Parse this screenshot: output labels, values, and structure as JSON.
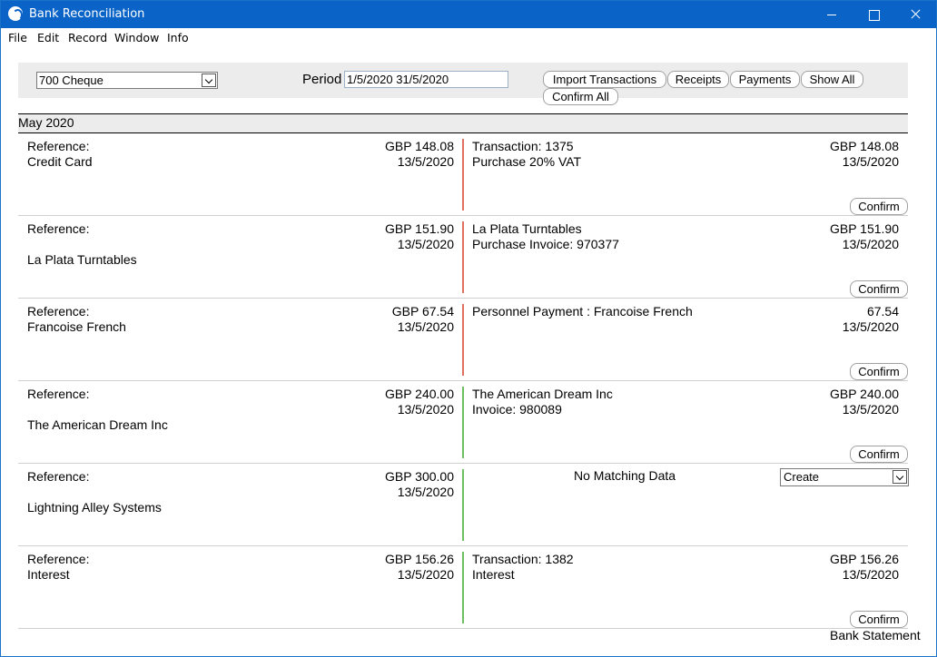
{
  "window": {
    "title": "Bank Reconciliation",
    "controls": {
      "minimize": "minimize",
      "maximize": "maximize",
      "close": "close"
    }
  },
  "menu": [
    "File",
    "Edit",
    "Record",
    "Window",
    "Info"
  ],
  "toolbar": {
    "account": "700 Cheque",
    "period_label": "Period",
    "period_value": "1/5/2020 31/5/2020",
    "buttons": {
      "import": "Import Transactions",
      "receipts": "Receipts",
      "payments": "Payments",
      "show_all": "Show All",
      "confirm_all": "Confirm All"
    }
  },
  "month": "May 2020",
  "rows": [
    {
      "left": {
        "line1": "Reference:",
        "line2": "Credit Card",
        "line3": "",
        "amount": "GBP 148.08",
        "date": "13/5/2020"
      },
      "status": "red",
      "right": {
        "line1": "Transaction: 1375",
        "line2": "Purchase 20% VAT",
        "amount": "GBP 148.08",
        "date": "13/5/2020"
      },
      "action": "Confirm"
    },
    {
      "left": {
        "line1": "Reference:",
        "line2": "",
        "line3": "La Plata Turntables",
        "amount": "GBP 151.90",
        "date": "13/5/2020"
      },
      "status": "red",
      "right": {
        "line1": "La Plata Turntables",
        "line2": "Purchase Invoice: 970377",
        "amount": "GBP 151.90",
        "date": "13/5/2020"
      },
      "action": "Confirm"
    },
    {
      "left": {
        "line1": "Reference:",
        "line2": "Francoise French",
        "line3": "",
        "amount": "GBP 67.54",
        "date": "13/5/2020"
      },
      "status": "red",
      "right": {
        "line1": "Personnel Payment : Francoise French",
        "line2": "",
        "amount": "67.54",
        "date": "13/5/2020"
      },
      "action": "Confirm"
    },
    {
      "left": {
        "line1": "Reference:",
        "line2": "",
        "line3": "The American Dream Inc",
        "amount": "GBP 240.00",
        "date": "13/5/2020"
      },
      "status": "green",
      "right": {
        "line1": "The American Dream Inc",
        "line2": "Invoice: 980089",
        "amount": "GBP 240.00",
        "date": "13/5/2020"
      },
      "action": "Confirm"
    },
    {
      "left": {
        "line1": "Reference:",
        "line2": "",
        "line3": "Lightning Alley Systems",
        "amount": "GBP 300.00",
        "date": "13/5/2020"
      },
      "status": "green",
      "no_match": "No Matching Data",
      "create_option": "Create"
    },
    {
      "left": {
        "line1": "Reference:",
        "line2": "Interest",
        "line3": "",
        "amount": "GBP 156.26",
        "date": "13/5/2020"
      },
      "status": "green",
      "right": {
        "line1": "Transaction: 1382",
        "line2": "Interest",
        "amount": "GBP 156.26",
        "date": "13/5/2020"
      },
      "action": "Confirm"
    }
  ],
  "footer_label": "Bank Statement",
  "colors": {
    "titlebar": "#0a64c8",
    "unmatched": "#e07060",
    "matched": "#6cc060",
    "toolbar_bg": "#ececec"
  }
}
